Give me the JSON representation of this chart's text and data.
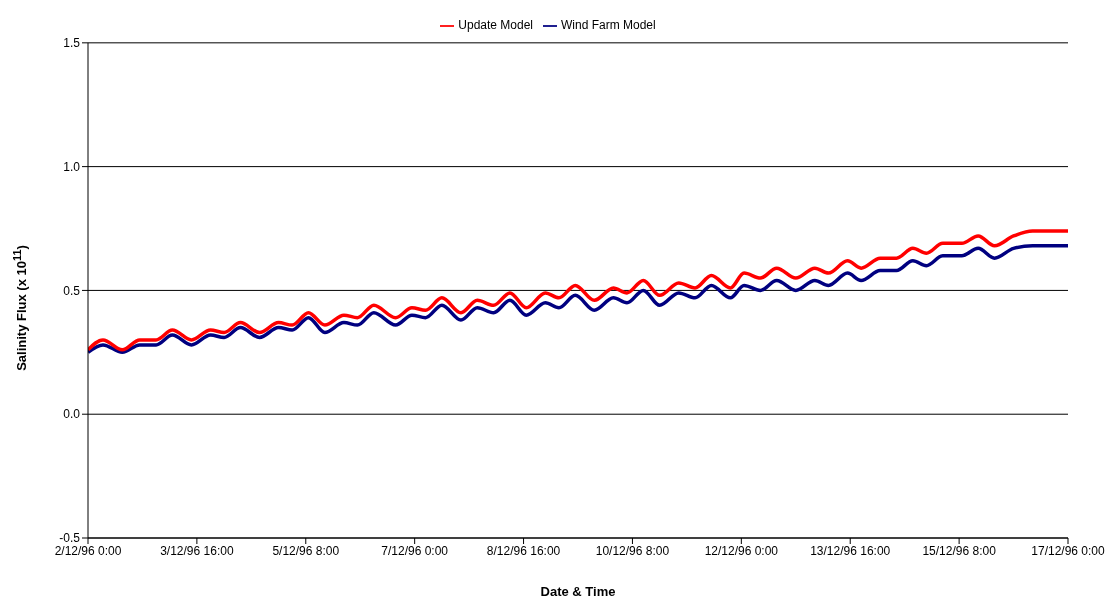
{
  "chart_data": {
    "type": "line",
    "xlabel": "Date & Time",
    "ylabel": "Salinity Flux (x 10$^{11}$)",
    "x": [
      "1996-12-02T00:00",
      "1996-12-02T05:30",
      "1996-12-02T12:36",
      "1996-12-02T19:00",
      "1996-12-03T01:00",
      "1996-12-03T07:00",
      "1996-12-03T14:00",
      "1996-12-03T21:00",
      "1996-12-04T02:00",
      "1996-12-04T08:00",
      "1996-12-04T15:00",
      "1996-12-04T22:00",
      "1996-12-05T03:00",
      "1996-12-05T09:00",
      "1996-12-05T15:00",
      "1996-12-05T22:00",
      "1996-12-06T03:00",
      "1996-12-06T09:00",
      "1996-12-06T17:00",
      "1996-12-06T23:00",
      "1996-12-07T04:00",
      "1996-12-07T10:00",
      "1996-12-07T17:00",
      "1996-12-07T23:00",
      "1996-12-08T05:00",
      "1996-12-08T11:00",
      "1996-12-08T17:00",
      "1996-12-09T00:00",
      "1996-12-09T05:00",
      "1996-12-09T11:00",
      "1996-12-09T18:00",
      "1996-12-10T01:00",
      "1996-12-10T06:00",
      "1996-12-10T12:00",
      "1996-12-10T18:00",
      "1996-12-11T01:00",
      "1996-12-11T07:00",
      "1996-12-11T13:00",
      "1996-12-11T20:00",
      "1996-12-12T01:00",
      "1996-12-12T07:00",
      "1996-12-12T13:00",
      "1996-12-12T20:00",
      "1996-12-13T03:00",
      "1996-12-13T08:00",
      "1996-12-13T15:00",
      "1996-12-13T20:00",
      "1996-12-14T03:00",
      "1996-12-14T09:00",
      "1996-12-14T15:00",
      "1996-12-14T20:00",
      "1996-12-15T02:00",
      "1996-12-15T09:00",
      "1996-12-15T15:00",
      "1996-12-15T21:00",
      "1996-12-16T04:00",
      "1996-12-16T11:00",
      "1996-12-17T00:00"
    ],
    "series": [
      {
        "name": "Wind Farm Model",
        "color": "#000080",
        "values": [
          0.25,
          0.28,
          0.25,
          0.28,
          0.28,
          0.32,
          0.28,
          0.32,
          0.31,
          0.35,
          0.31,
          0.35,
          0.34,
          0.39,
          0.33,
          0.37,
          0.36,
          0.41,
          0.36,
          0.4,
          0.39,
          0.44,
          0.38,
          0.43,
          0.41,
          0.46,
          0.4,
          0.45,
          0.43,
          0.48,
          0.42,
          0.47,
          0.45,
          0.5,
          0.44,
          0.49,
          0.47,
          0.52,
          0.47,
          0.52,
          0.5,
          0.54,
          0.5,
          0.54,
          0.52,
          0.57,
          0.54,
          0.58,
          0.58,
          0.62,
          0.6,
          0.64,
          0.64,
          0.67,
          0.63,
          0.67,
          0.68,
          0.68
        ]
      },
      {
        "name": "Update Model",
        "color": "#ff0000",
        "values": [
          0.26,
          0.3,
          0.26,
          0.3,
          0.3,
          0.34,
          0.3,
          0.34,
          0.33,
          0.37,
          0.33,
          0.37,
          0.36,
          0.41,
          0.36,
          0.4,
          0.39,
          0.44,
          0.39,
          0.43,
          0.42,
          0.47,
          0.41,
          0.46,
          0.44,
          0.49,
          0.43,
          0.49,
          0.47,
          0.52,
          0.46,
          0.51,
          0.49,
          0.54,
          0.48,
          0.53,
          0.51,
          0.56,
          0.51,
          0.57,
          0.55,
          0.59,
          0.55,
          0.59,
          0.57,
          0.62,
          0.59,
          0.63,
          0.63,
          0.67,
          0.65,
          0.69,
          0.69,
          0.72,
          0.68,
          0.72,
          0.74,
          0.74
        ]
      }
    ],
    "xlim": [
      "1996-12-02T00:00",
      "1996-12-17T00:00"
    ],
    "xticks": [
      {
        "value": "1996-12-02T00:00",
        "label": "2/12/96 0:00"
      },
      {
        "value": "1996-12-03T16:00",
        "label": "3/12/96 16:00"
      },
      {
        "value": "1996-12-05T08:00",
        "label": "5/12/96 8:00"
      },
      {
        "value": "1996-12-07T00:00",
        "label": "7/12/96 0:00"
      },
      {
        "value": "1996-12-08T16:00",
        "label": "8/12/96 16:00"
      },
      {
        "value": "1996-12-10T08:00",
        "label": "10/12/96 8:00"
      },
      {
        "value": "1996-12-12T00:00",
        "label": "12/12/96 0:00"
      },
      {
        "value": "1996-12-13T16:00",
        "label": "13/12/96 16:00"
      },
      {
        "value": "1996-12-15T08:00",
        "label": "15/12/96 8:00"
      },
      {
        "value": "1996-12-17T00:00",
        "label": "17/12/96 0:00"
      }
    ],
    "ylim": [
      -0.5,
      1.5
    ],
    "yticks": [
      {
        "value": -0.5,
        "label": "-0.5"
      },
      {
        "value": 0,
        "label": "0.0"
      },
      {
        "value": 0.5,
        "label": "0.5"
      },
      {
        "value": 1,
        "label": "1.0"
      },
      {
        "value": 1.5,
        "label": "1.5"
      }
    ],
    "grid": "y",
    "legend": "top",
    "marker": "none",
    "line_style": "solid"
  }
}
